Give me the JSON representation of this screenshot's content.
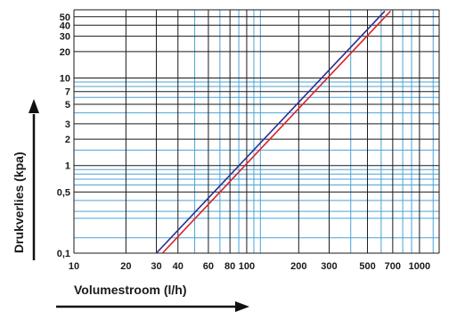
{
  "chart_data": {
    "type": "line",
    "x_scale": "log",
    "y_scale": "log",
    "xlim": [
      10,
      1300
    ],
    "ylim": [
      0.1,
      60
    ],
    "xlabel": "Volumestroom (l/h)",
    "ylabel": "Drukverlies (kpa)",
    "x_tick_labels": [
      "10",
      "20",
      "30",
      "40",
      "60",
      "80",
      "100",
      "200",
      "300",
      "500",
      "700",
      "1000"
    ],
    "y_tick_labels": [
      "0,1",
      "0,5",
      "1",
      "2",
      "3",
      "5",
      "7",
      "10",
      "20",
      "30",
      "40",
      "50"
    ],
    "x_grid_blue": [
      50,
      70,
      90,
      110,
      120,
      400,
      600,
      800,
      900,
      1200
    ],
    "y_grid_blue": [
      0.15,
      0.25,
      0.3,
      0.4,
      0.6,
      0.7,
      0.8,
      0.9,
      1.5,
      4,
      6,
      8,
      9
    ],
    "series": [
      {
        "color": "#2b2f8f",
        "points": [
          [
            30,
            0.1
          ],
          [
            630,
            58
          ]
        ]
      },
      {
        "color": "#d8232a",
        "points": [
          [
            32.5,
            0.1
          ],
          [
            680,
            58
          ]
        ]
      }
    ]
  }
}
